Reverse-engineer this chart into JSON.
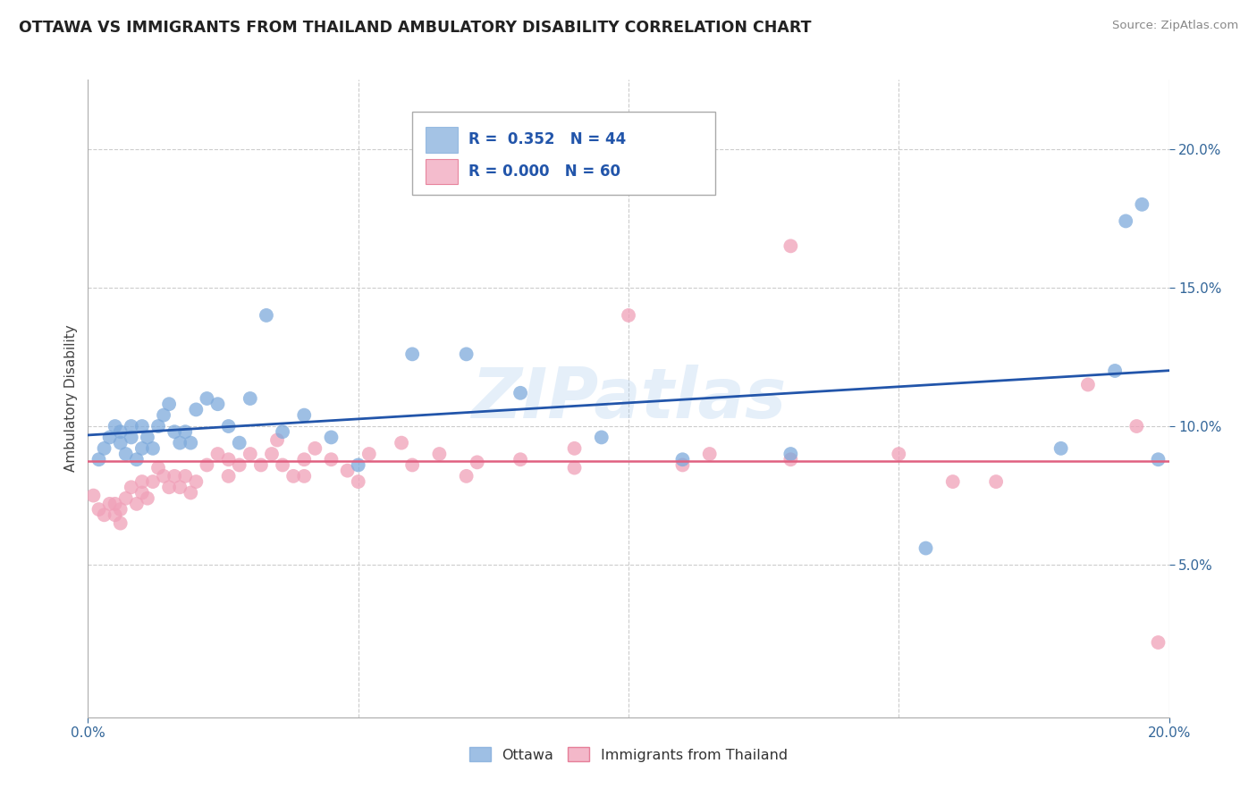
{
  "title": "OTTAWA VS IMMIGRANTS FROM THAILAND AMBULATORY DISABILITY CORRELATION CHART",
  "source": "Source: ZipAtlas.com",
  "ylabel": "Ambulatory Disability",
  "ytick_labels": [
    "5.0%",
    "10.0%",
    "15.0%",
    "20.0%"
  ],
  "ytick_values": [
    0.05,
    0.1,
    0.15,
    0.2
  ],
  "xlim": [
    0.0,
    0.2
  ],
  "ylim": [
    -0.005,
    0.225
  ],
  "blue_color": "#7eaadb",
  "pink_color": "#f0a0b8",
  "blue_line_color": "#2255aa",
  "pink_line_color": "#e06080",
  "watermark": "ZIPatlas",
  "blue_scatter_x": [
    0.002,
    0.003,
    0.004,
    0.005,
    0.006,
    0.006,
    0.007,
    0.008,
    0.008,
    0.009,
    0.01,
    0.01,
    0.011,
    0.012,
    0.013,
    0.014,
    0.015,
    0.016,
    0.017,
    0.018,
    0.019,
    0.02,
    0.022,
    0.024,
    0.026,
    0.028,
    0.03,
    0.033,
    0.036,
    0.04,
    0.045,
    0.05,
    0.06,
    0.07,
    0.08,
    0.095,
    0.11,
    0.13,
    0.155,
    0.18,
    0.19,
    0.192,
    0.195,
    0.198
  ],
  "blue_scatter_y": [
    0.088,
    0.092,
    0.096,
    0.1,
    0.094,
    0.098,
    0.09,
    0.096,
    0.1,
    0.088,
    0.092,
    0.1,
    0.096,
    0.092,
    0.1,
    0.104,
    0.108,
    0.098,
    0.094,
    0.098,
    0.094,
    0.106,
    0.11,
    0.108,
    0.1,
    0.094,
    0.11,
    0.14,
    0.098,
    0.104,
    0.096,
    0.086,
    0.126,
    0.126,
    0.112,
    0.096,
    0.088,
    0.09,
    0.056,
    0.092,
    0.12,
    0.174,
    0.18,
    0.088
  ],
  "pink_scatter_x": [
    0.001,
    0.002,
    0.003,
    0.004,
    0.005,
    0.005,
    0.006,
    0.006,
    0.007,
    0.008,
    0.009,
    0.01,
    0.01,
    0.011,
    0.012,
    0.013,
    0.014,
    0.015,
    0.016,
    0.017,
    0.018,
    0.019,
    0.02,
    0.022,
    0.024,
    0.026,
    0.028,
    0.03,
    0.032,
    0.034,
    0.036,
    0.038,
    0.04,
    0.042,
    0.045,
    0.048,
    0.052,
    0.058,
    0.065,
    0.072,
    0.08,
    0.09,
    0.1,
    0.115,
    0.13,
    0.15,
    0.168,
    0.185,
    0.194,
    0.198,
    0.026,
    0.035,
    0.04,
    0.05,
    0.06,
    0.07,
    0.09,
    0.11,
    0.13,
    0.16
  ],
  "pink_scatter_y": [
    0.075,
    0.07,
    0.068,
    0.072,
    0.068,
    0.072,
    0.065,
    0.07,
    0.074,
    0.078,
    0.072,
    0.076,
    0.08,
    0.074,
    0.08,
    0.085,
    0.082,
    0.078,
    0.082,
    0.078,
    0.082,
    0.076,
    0.08,
    0.086,
    0.09,
    0.082,
    0.086,
    0.09,
    0.086,
    0.09,
    0.086,
    0.082,
    0.088,
    0.092,
    0.088,
    0.084,
    0.09,
    0.094,
    0.09,
    0.087,
    0.088,
    0.092,
    0.14,
    0.09,
    0.165,
    0.09,
    0.08,
    0.115,
    0.1,
    0.022,
    0.088,
    0.095,
    0.082,
    0.08,
    0.086,
    0.082,
    0.085,
    0.086,
    0.088,
    0.08
  ]
}
